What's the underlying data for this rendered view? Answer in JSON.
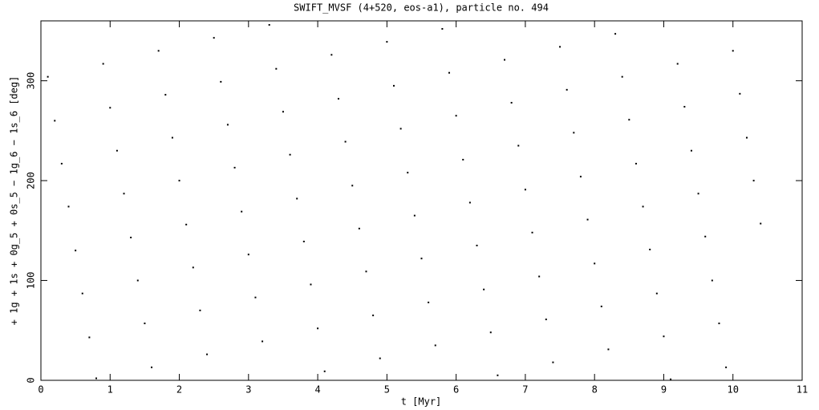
{
  "chart_data": {
    "type": "scatter",
    "title": "SWIFT_MVSF (4+520, eos-a1), particle no. 494",
    "x_label": "t [Myr]",
    "y_label": "+ 1g + 1s + 0g_5 + 0s_5 − 1g_6 − 1s_6 [deg]",
    "color": "#000000",
    "x": [
      0.1,
      0.2,
      0.3,
      0.4,
      0.5,
      0.6,
      0.7,
      0.8,
      0.9,
      1.0,
      1.1,
      1.2,
      1.3,
      1.4,
      1.5,
      1.6,
      1.7,
      1.8,
      1.9,
      2.0,
      2.1,
      2.2,
      2.3,
      2.4,
      2.5,
      2.6,
      2.7,
      2.8,
      2.9,
      3.0,
      3.1,
      3.2,
      3.3,
      3.4,
      3.5,
      3.6,
      3.7,
      3.8,
      3.9,
      4.0,
      4.1,
      4.2,
      4.3,
      4.4,
      4.5,
      4.6,
      4.7,
      4.8,
      4.9,
      5.0,
      5.1,
      5.2,
      5.3,
      5.4,
      5.5,
      5.6,
      5.7,
      5.8,
      5.9,
      6.0,
      6.1,
      6.2,
      6.3,
      6.4,
      6.5,
      6.6,
      6.7,
      6.8,
      6.9,
      7.0,
      7.1,
      7.2,
      7.3,
      7.4,
      7.5,
      7.6,
      7.7,
      7.8,
      7.9,
      8.0,
      8.1,
      8.2,
      8.3,
      8.4,
      8.5,
      8.6,
      8.7,
      8.8,
      8.9,
      9.0,
      9.1,
      9.2,
      9.3,
      9.4,
      9.5,
      9.6,
      9.7,
      9.8,
      9.9,
      10.0,
      10.1,
      10.2,
      10.3,
      10.4
    ],
    "values": [
      304,
      260,
      217,
      174,
      130,
      87,
      43,
      2,
      317,
      273,
      230,
      187,
      143,
      100,
      57,
      13,
      330,
      286,
      243,
      200,
      156,
      113,
      70,
      26,
      343,
      299,
      256,
      213,
      169,
      126,
      83,
      39,
      356,
      312,
      269,
      226,
      182,
      139,
      96,
      52,
      9,
      326,
      282,
      239,
      195,
      152,
      109,
      65,
      22,
      339,
      295,
      252,
      208,
      165,
      122,
      78,
      35,
      352,
      308,
      265,
      221,
      178,
      135,
      91,
      48,
      5,
      321,
      278,
      235,
      191,
      148,
      104,
      61,
      18,
      334,
      291,
      248,
      204,
      161,
      117,
      74,
      31,
      347,
      304,
      261,
      217,
      174,
      131,
      87,
      44,
      1,
      317,
      274,
      230,
      187,
      144,
      100,
      57,
      13,
      330,
      287,
      243,
      200,
      157
    ],
    "xlim": [
      0,
      11
    ],
    "ylim": [
      0,
      360
    ],
    "xticks": [
      0,
      1,
      2,
      3,
      4,
      5,
      6,
      7,
      8,
      9,
      10,
      11
    ],
    "yticks": [
      0,
      100,
      200,
      300
    ]
  }
}
